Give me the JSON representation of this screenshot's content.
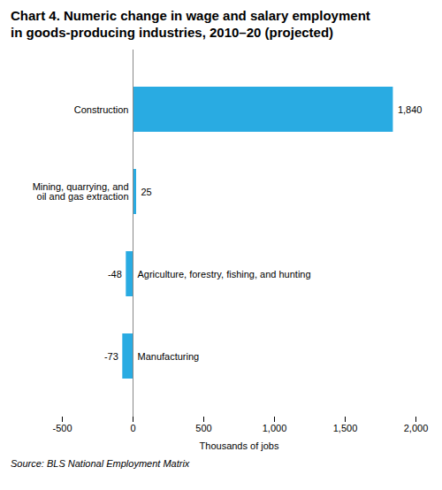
{
  "chart_data": {
    "type": "bar",
    "orientation": "horizontal",
    "title": "Chart 4. Numeric change in  wage and salary employment\nin goods-producing industries, 2010–20 (projected)",
    "xlabel": "Thousands of jobs",
    "source": "Source: BLS National Employment Matrix",
    "categories": [
      "Construction",
      "Mining, quarrying, and\noil and gas extraction",
      "Agriculture, forestry, fishing, and hunting",
      "Manufacturing"
    ],
    "values": [
      1840,
      25,
      -48,
      -73
    ],
    "value_labels": [
      "1,840",
      "25",
      "-48",
      "-73"
    ],
    "data_labels": true,
    "color": "#29ABE2",
    "xlim": [
      -500,
      2000
    ],
    "xticks": [
      -500,
      0,
      500,
      {
        "value": 1000,
        "label": "1,000"
      },
      {
        "value": 1500,
        "label": "1,500"
      },
      {
        "value": 2000,
        "label": "2,000"
      }
    ],
    "grid": false,
    "tick_labels": "x"
  }
}
